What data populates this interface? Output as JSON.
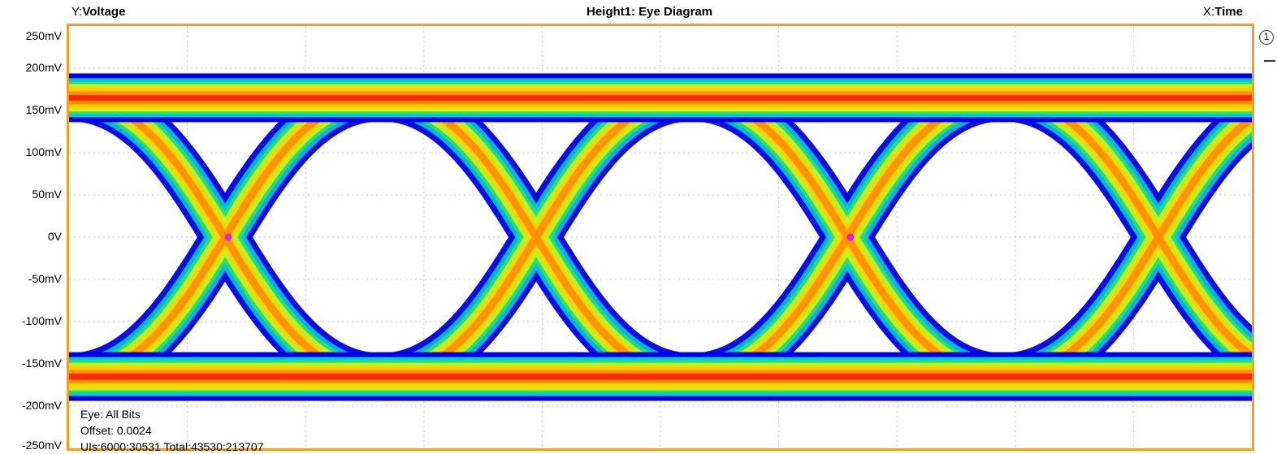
{
  "header": {
    "y_prefix": "Y:",
    "y_name": "Voltage",
    "title": "Height1: Eye Diagram",
    "x_prefix": "X:",
    "x_name": "Time"
  },
  "side_marker": {
    "label": "1"
  },
  "overlay": {
    "eye": "Eye: All Bits",
    "offset": "Offset: 0.0024",
    "uis": "UIs:6000:30531  Total:43530:213707"
  },
  "colors": {
    "border": "#f0a028",
    "marker": "#e020e0",
    "density_low": "#0000e0",
    "density_mid": "#c8f020",
    "density_high": "#ff2000"
  },
  "chart_data": {
    "type": "heatmap",
    "subtype": "eye-diagram",
    "title": "Height1: Eye Diagram",
    "ylabel": "Voltage",
    "xlabel": "Time",
    "y_unit": "mV",
    "ylim": [
      -250,
      250
    ],
    "y_ticks": [
      250,
      200,
      150,
      100,
      50,
      0,
      -50,
      -100,
      -150,
      -200,
      -250
    ],
    "y_tick_labels": [
      "250mV",
      "200mV",
      "150mV",
      "100mV",
      "50mV",
      "0V",
      "-50mV",
      "-100mV",
      "-150mV",
      "-200mV",
      "-250mV"
    ],
    "grid": true,
    "levels": {
      "high_mV": 165,
      "low_mV": -165
    },
    "crossing_markers": [
      {
        "ui": 0.5,
        "y": 0
      },
      {
        "ui": 2.5,
        "y": 0
      }
    ],
    "legend": "none"
  }
}
